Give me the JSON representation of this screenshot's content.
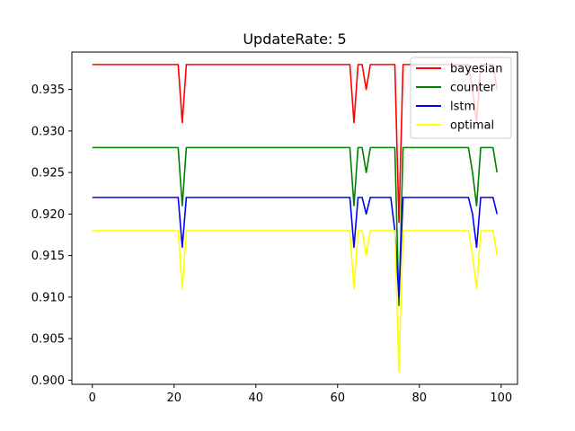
{
  "chart_data": {
    "type": "line",
    "title": "UpdateRate: 5",
    "xlabel": "",
    "ylabel": "",
    "xlim": [
      -5,
      104
    ],
    "ylim": [
      0.8995,
      0.9395
    ],
    "x_ticks": [
      0,
      20,
      40,
      60,
      80,
      100
    ],
    "y_ticks": [
      0.9,
      0.905,
      0.91,
      0.915,
      0.92,
      0.925,
      0.93,
      0.935
    ],
    "x_tick_labels": [
      "0",
      "20",
      "40",
      "60",
      "80",
      "100"
    ],
    "y_tick_labels": [
      "0.900",
      "0.905",
      "0.910",
      "0.915",
      "0.920",
      "0.925",
      "0.930",
      "0.935"
    ],
    "grid": false,
    "legend_position": "top-right",
    "x": [
      0,
      1,
      2,
      3,
      4,
      5,
      6,
      7,
      8,
      9,
      10,
      11,
      12,
      13,
      14,
      15,
      16,
      17,
      18,
      19,
      20,
      21,
      22,
      23,
      24,
      25,
      26,
      27,
      28,
      29,
      30,
      31,
      32,
      33,
      34,
      35,
      36,
      37,
      38,
      39,
      40,
      41,
      42,
      43,
      44,
      45,
      46,
      47,
      48,
      49,
      50,
      51,
      52,
      53,
      54,
      55,
      56,
      57,
      58,
      59,
      60,
      61,
      62,
      63,
      64,
      65,
      66,
      67,
      68,
      69,
      70,
      71,
      72,
      73,
      74,
      75,
      76,
      77,
      78,
      79,
      80,
      81,
      82,
      83,
      84,
      85,
      86,
      87,
      88,
      89,
      90,
      91,
      92,
      93,
      94,
      95,
      96,
      97,
      98,
      99
    ],
    "series": [
      {
        "name": "bayesian",
        "color": "#ff0000",
        "values": [
          0.938,
          0.938,
          0.938,
          0.938,
          0.938,
          0.938,
          0.938,
          0.938,
          0.938,
          0.938,
          0.938,
          0.938,
          0.938,
          0.938,
          0.938,
          0.938,
          0.938,
          0.938,
          0.938,
          0.938,
          0.938,
          0.938,
          0.931,
          0.938,
          0.938,
          0.938,
          0.938,
          0.938,
          0.938,
          0.938,
          0.938,
          0.938,
          0.938,
          0.938,
          0.938,
          0.938,
          0.938,
          0.938,
          0.938,
          0.938,
          0.938,
          0.938,
          0.938,
          0.938,
          0.938,
          0.938,
          0.938,
          0.938,
          0.938,
          0.938,
          0.938,
          0.938,
          0.938,
          0.938,
          0.938,
          0.938,
          0.938,
          0.938,
          0.938,
          0.938,
          0.938,
          0.938,
          0.938,
          0.938,
          0.931,
          0.938,
          0.938,
          0.935,
          0.938,
          0.938,
          0.938,
          0.938,
          0.938,
          0.938,
          0.938,
          0.919,
          0.938,
          0.938,
          0.938,
          0.938,
          0.938,
          0.938,
          0.938,
          0.938,
          0.938,
          0.938,
          0.938,
          0.938,
          0.938,
          0.938,
          0.938,
          0.938,
          0.938,
          0.935,
          0.931,
          0.938,
          0.938,
          0.938,
          0.938,
          0.935
        ]
      },
      {
        "name": "counter",
        "color": "#008000",
        "values": [
          0.928,
          0.928,
          0.928,
          0.928,
          0.928,
          0.928,
          0.928,
          0.928,
          0.928,
          0.928,
          0.928,
          0.928,
          0.928,
          0.928,
          0.928,
          0.928,
          0.928,
          0.928,
          0.928,
          0.928,
          0.928,
          0.928,
          0.921,
          0.928,
          0.928,
          0.928,
          0.928,
          0.928,
          0.928,
          0.928,
          0.928,
          0.928,
          0.928,
          0.928,
          0.928,
          0.928,
          0.928,
          0.928,
          0.928,
          0.928,
          0.928,
          0.928,
          0.928,
          0.928,
          0.928,
          0.928,
          0.928,
          0.928,
          0.928,
          0.928,
          0.928,
          0.928,
          0.928,
          0.928,
          0.928,
          0.928,
          0.928,
          0.928,
          0.928,
          0.928,
          0.928,
          0.928,
          0.928,
          0.928,
          0.921,
          0.928,
          0.928,
          0.925,
          0.928,
          0.928,
          0.928,
          0.928,
          0.928,
          0.928,
          0.928,
          0.909,
          0.928,
          0.928,
          0.928,
          0.928,
          0.928,
          0.928,
          0.928,
          0.928,
          0.928,
          0.928,
          0.928,
          0.928,
          0.928,
          0.928,
          0.928,
          0.928,
          0.928,
          0.925,
          0.921,
          0.928,
          0.928,
          0.928,
          0.928,
          0.925
        ]
      },
      {
        "name": "lstm",
        "color": "#0000ff",
        "values": [
          0.922,
          0.922,
          0.922,
          0.922,
          0.922,
          0.922,
          0.922,
          0.922,
          0.922,
          0.922,
          0.922,
          0.922,
          0.922,
          0.922,
          0.922,
          0.922,
          0.922,
          0.922,
          0.922,
          0.922,
          0.922,
          0.922,
          0.916,
          0.922,
          0.922,
          0.922,
          0.922,
          0.922,
          0.922,
          0.922,
          0.922,
          0.922,
          0.922,
          0.922,
          0.922,
          0.922,
          0.922,
          0.922,
          0.922,
          0.922,
          0.922,
          0.922,
          0.922,
          0.922,
          0.922,
          0.922,
          0.922,
          0.922,
          0.922,
          0.922,
          0.922,
          0.922,
          0.922,
          0.922,
          0.922,
          0.922,
          0.922,
          0.922,
          0.922,
          0.922,
          0.922,
          0.922,
          0.922,
          0.922,
          0.916,
          0.922,
          0.922,
          0.92,
          0.922,
          0.922,
          0.922,
          0.922,
          0.922,
          0.922,
          0.918,
          0.91,
          0.922,
          0.922,
          0.922,
          0.922,
          0.922,
          0.922,
          0.922,
          0.922,
          0.922,
          0.922,
          0.922,
          0.922,
          0.922,
          0.922,
          0.922,
          0.922,
          0.922,
          0.92,
          0.916,
          0.922,
          0.922,
          0.922,
          0.922,
          0.92
        ]
      },
      {
        "name": "optimal",
        "color": "#ffff00",
        "values": [
          0.918,
          0.918,
          0.918,
          0.918,
          0.918,
          0.918,
          0.918,
          0.918,
          0.918,
          0.918,
          0.918,
          0.918,
          0.918,
          0.918,
          0.918,
          0.918,
          0.918,
          0.918,
          0.918,
          0.918,
          0.918,
          0.918,
          0.911,
          0.918,
          0.918,
          0.918,
          0.918,
          0.918,
          0.918,
          0.918,
          0.918,
          0.918,
          0.918,
          0.918,
          0.918,
          0.918,
          0.918,
          0.918,
          0.918,
          0.918,
          0.918,
          0.918,
          0.918,
          0.918,
          0.918,
          0.918,
          0.918,
          0.918,
          0.918,
          0.918,
          0.918,
          0.918,
          0.918,
          0.918,
          0.918,
          0.918,
          0.918,
          0.918,
          0.918,
          0.918,
          0.918,
          0.918,
          0.918,
          0.918,
          0.911,
          0.918,
          0.918,
          0.915,
          0.918,
          0.918,
          0.918,
          0.918,
          0.918,
          0.918,
          0.918,
          0.901,
          0.918,
          0.918,
          0.918,
          0.918,
          0.918,
          0.918,
          0.918,
          0.918,
          0.918,
          0.918,
          0.918,
          0.918,
          0.918,
          0.918,
          0.918,
          0.918,
          0.918,
          0.915,
          0.911,
          0.918,
          0.918,
          0.918,
          0.918,
          0.915
        ]
      }
    ]
  }
}
